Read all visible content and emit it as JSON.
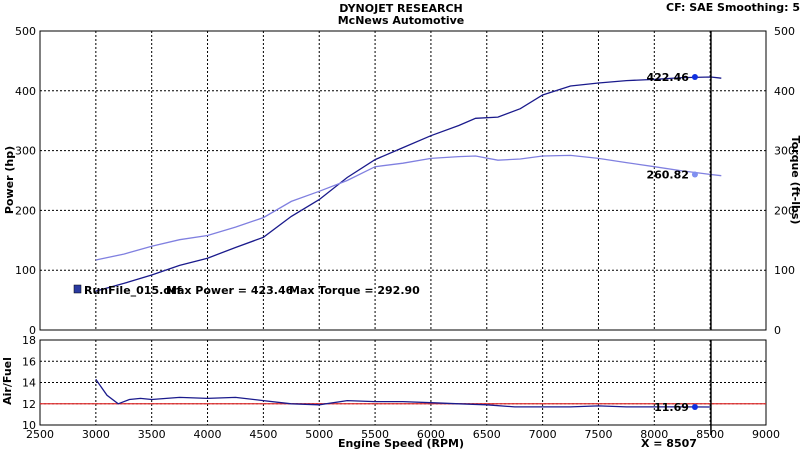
{
  "header": {
    "title": "DYNOJET RESEARCH",
    "subtitle": "McNews Automotive",
    "settings": "CF: SAE  Smoothing: 5"
  },
  "legend": {
    "run_file": "RunFile_015.drf",
    "max_power": "Max Power = 423.46",
    "max_torque": "Max Torque = 292.90"
  },
  "cursor": {
    "x_label": "X = 8507",
    "x_value": 8507
  },
  "colors": {
    "power": "#1a1a8c",
    "torque": "#8080e0",
    "afr": "#1a1a8c",
    "afr_reference": "#e03030",
    "grid": "#000000",
    "cursor_line": "#000000"
  },
  "chart_data": [
    {
      "type": "line",
      "title": "DYNOJET RESEARCH",
      "subtitle": "McNews Automotive",
      "xlabel": "",
      "ylabel": "Power (hp)",
      "ylabel_right": "Torque (ft-lbs)",
      "xlim": [
        2500,
        9000
      ],
      "ylim": [
        0,
        500
      ],
      "y_ticks": [
        0,
        100,
        200,
        300,
        400,
        500
      ],
      "grid": true,
      "legend_position": "bottom-left",
      "series": [
        {
          "name": "Max Power",
          "x": [
            3000,
            3250,
            3500,
            3750,
            4000,
            4250,
            4500,
            4750,
            5000,
            5250,
            5500,
            5750,
            6000,
            6250,
            6400,
            6600,
            6800,
            7000,
            7250,
            7500,
            7750,
            8000,
            8250,
            8507,
            8600
          ],
          "values": [
            65,
            78,
            92,
            108,
            120,
            138,
            155,
            190,
            218,
            255,
            285,
            305,
            325,
            342,
            354,
            356,
            370,
            393,
            408,
            413,
            417,
            419,
            422,
            423,
            421
          ],
          "end_label": "422.46"
        },
        {
          "name": "Max Torque",
          "x": [
            3000,
            3250,
            3500,
            3750,
            4000,
            4250,
            4500,
            4750,
            5000,
            5250,
            5500,
            5750,
            6000,
            6250,
            6400,
            6600,
            6800,
            7000,
            7250,
            7500,
            7750,
            8000,
            8250,
            8507,
            8600
          ],
          "values": [
            117,
            127,
            140,
            151,
            158,
            172,
            188,
            215,
            232,
            250,
            273,
            279,
            287,
            290,
            291,
            284,
            286,
            291,
            292,
            287,
            280,
            273,
            266,
            260,
            258
          ],
          "end_label": "260.82"
        }
      ]
    },
    {
      "type": "line",
      "xlabel": "Engine Speed (RPM)",
      "ylabel": "Air/Fuel",
      "xlim": [
        2500,
        9000
      ],
      "ylim": [
        10,
        18
      ],
      "x_ticks": [
        2500,
        3000,
        3500,
        4000,
        4500,
        5000,
        5500,
        6000,
        6500,
        7000,
        7500,
        8000,
        8500,
        9000
      ],
      "y_ticks": [
        10,
        12,
        14,
        16,
        18
      ],
      "grid": true,
      "reference_line": 12.0,
      "series": [
        {
          "name": "Air/Fuel",
          "x": [
            3000,
            3100,
            3200,
            3300,
            3400,
            3500,
            3750,
            4000,
            4250,
            4500,
            4750,
            5000,
            5250,
            5500,
            5750,
            6000,
            6250,
            6500,
            6750,
            7000,
            7250,
            7500,
            7750,
            8000,
            8250,
            8507
          ],
          "values": [
            14.3,
            12.8,
            12.0,
            12.4,
            12.5,
            12.4,
            12.6,
            12.5,
            12.6,
            12.3,
            12.0,
            11.9,
            12.3,
            12.2,
            12.2,
            12.1,
            12.0,
            11.9,
            11.7,
            11.7,
            11.7,
            11.8,
            11.7,
            11.7,
            11.7,
            11.69
          ],
          "end_label": "11.69"
        }
      ]
    }
  ]
}
